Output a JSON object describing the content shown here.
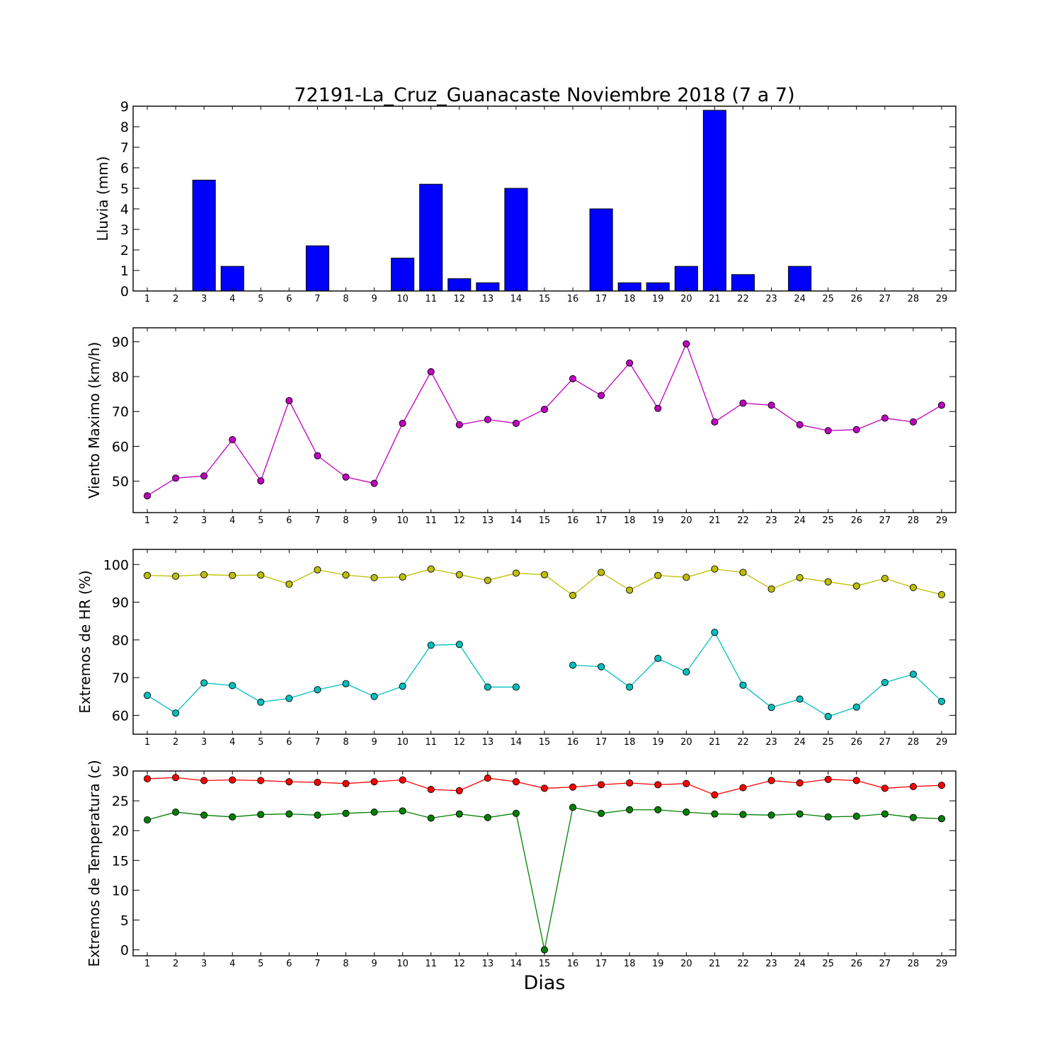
{
  "figure": {
    "title": "72191-La_Cruz_Guanacaste Noviembre 2018  (7 a 7)",
    "xlabel": "Dias"
  },
  "chart_data": [
    {
      "type": "bar",
      "ylabel": "Lluvia (mm)",
      "x": [
        1,
        2,
        3,
        4,
        5,
        6,
        7,
        8,
        9,
        10,
        11,
        12,
        13,
        14,
        15,
        16,
        17,
        18,
        19,
        20,
        21,
        22,
        23,
        24,
        25,
        26,
        27,
        28,
        29
      ],
      "xlim": [
        0.5,
        29.5
      ],
      "ylim": [
        0,
        9
      ],
      "yticks": [
        0,
        1,
        2,
        3,
        4,
        5,
        6,
        7,
        8,
        9
      ],
      "grid": false,
      "series": [
        {
          "color": "#0000ff",
          "values": [
            0,
            0,
            5.4,
            1.2,
            0,
            0,
            2.2,
            0,
            0,
            1.6,
            5.2,
            0.6,
            0.4,
            5.0,
            0,
            0,
            4.0,
            0.4,
            0.4,
            1.2,
            8.8,
            0.8,
            0,
            1.2,
            0,
            0,
            0,
            0,
            0
          ]
        }
      ]
    },
    {
      "type": "line",
      "ylabel": "Viento Maximo (km/h)",
      "x": [
        1,
        2,
        3,
        4,
        5,
        6,
        7,
        8,
        9,
        10,
        11,
        12,
        13,
        14,
        15,
        16,
        17,
        18,
        19,
        20,
        21,
        22,
        23,
        24,
        25,
        26,
        27,
        28,
        29
      ],
      "xlim": [
        0.5,
        29.5
      ],
      "ylim": [
        41,
        94
      ],
      "yticks": [
        50,
        60,
        70,
        80,
        90
      ],
      "grid": false,
      "series": [
        {
          "color": "#bf00bf",
          "values": [
            45.8,
            50.9,
            51.5,
            61.9,
            50.1,
            73.1,
            57.3,
            51.2,
            49.4,
            66.6,
            81.4,
            66.2,
            67.7,
            66.6,
            70.6,
            79.4,
            74.6,
            83.9,
            70.9,
            89.4,
            67.0,
            72.4,
            71.8,
            66.2,
            64.5,
            64.8,
            68.1,
            67.0,
            71.8
          ]
        }
      ]
    },
    {
      "type": "line",
      "ylabel": "Extremos de HR (%)",
      "x": [
        1,
        2,
        3,
        4,
        5,
        6,
        7,
        8,
        9,
        10,
        11,
        12,
        13,
        14,
        15,
        16,
        17,
        18,
        19,
        20,
        21,
        22,
        23,
        24,
        25,
        26,
        27,
        28,
        29
      ],
      "xlim": [
        0.5,
        29.5
      ],
      "ylim": [
        55,
        104
      ],
      "yticks": [
        60,
        70,
        80,
        90,
        100
      ],
      "grid": false,
      "series": [
        {
          "color": "#bfbf00",
          "values": [
            97.1,
            96.9,
            97.3,
            97.1,
            97.2,
            94.8,
            98.6,
            97.2,
            96.5,
            96.7,
            98.8,
            97.3,
            95.8,
            97.7,
            97.3,
            91.8,
            97.9,
            93.2,
            97.1,
            96.6,
            98.8,
            97.9,
            93.5,
            96.5,
            95.4,
            94.3,
            96.3,
            93.9,
            92.0
          ]
        },
        {
          "color": "#00bfbf",
          "values": [
            65.3,
            60.6,
            68.6,
            67.9,
            63.5,
            64.5,
            66.8,
            68.4,
            65.0,
            67.7,
            78.6,
            78.8,
            67.5,
            67.5,
            null,
            73.3,
            72.9,
            67.5,
            75.1,
            71.5,
            82.0,
            68.0,
            62.1,
            64.3,
            59.7,
            62.2,
            68.7,
            70.9,
            63.7
          ]
        }
      ]
    },
    {
      "type": "line",
      "ylabel": "Extremos de Temperatura (c)",
      "x": [
        1,
        2,
        3,
        4,
        5,
        6,
        7,
        8,
        9,
        10,
        11,
        12,
        13,
        14,
        15,
        16,
        17,
        18,
        19,
        20,
        21,
        22,
        23,
        24,
        25,
        26,
        27,
        28,
        29
      ],
      "xlim": [
        0.5,
        29.5
      ],
      "ylim": [
        -1,
        30
      ],
      "yticks": [
        0,
        5,
        10,
        15,
        20,
        25,
        30
      ],
      "grid": false,
      "series": [
        {
          "color": "#ff0000",
          "values": [
            28.7,
            28.9,
            28.4,
            28.5,
            28.4,
            28.2,
            28.1,
            27.9,
            28.2,
            28.5,
            26.9,
            26.7,
            28.8,
            28.2,
            27.1,
            27.3,
            27.7,
            28.0,
            27.7,
            27.9,
            26.0,
            27.2,
            28.4,
            28.0,
            28.6,
            28.4,
            27.1,
            27.4,
            27.6
          ]
        },
        {
          "color": "#008000",
          "values": [
            21.8,
            23.1,
            22.6,
            22.3,
            22.7,
            22.8,
            22.6,
            22.9,
            23.1,
            23.3,
            22.1,
            22.8,
            22.2,
            22.9,
            0.0,
            23.9,
            22.9,
            23.5,
            23.5,
            23.1,
            22.8,
            22.7,
            22.6,
            22.8,
            22.3,
            22.4,
            22.8,
            22.2,
            22.0
          ]
        }
      ]
    }
  ]
}
